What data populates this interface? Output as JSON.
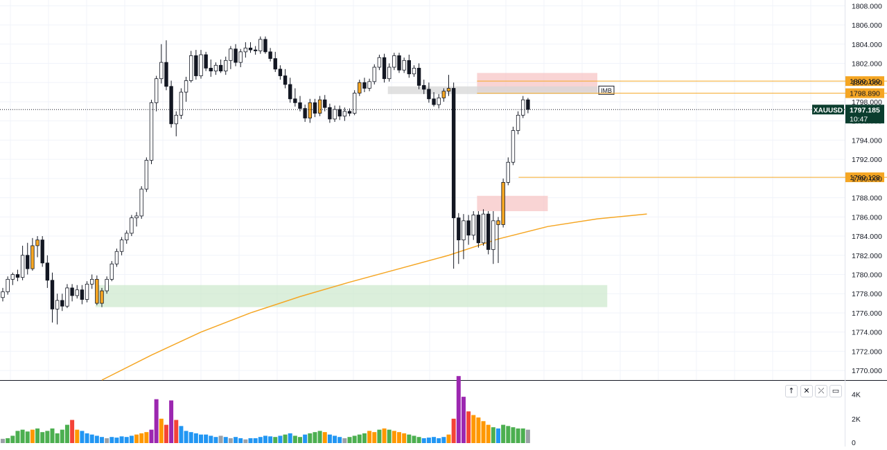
{
  "chart_data": [
    {
      "type": "candlestick",
      "symbol": "XAUUSD",
      "last_price": "1797.185",
      "countdown": "10:47",
      "ylim": [
        1769,
        1808.6
      ],
      "y_ticks": [
        "1770.000",
        "1772.000",
        "1774.000",
        "1776.000",
        "1778.000",
        "1780.000",
        "1782.000",
        "1784.000",
        "1786.000",
        "1788.000",
        "1790.000",
        "1792.000",
        "1794.000",
        "1796.000",
        "1798.000",
        "1800.000",
        "1802.000",
        "1804.000",
        "1806.000",
        "1808.000"
      ],
      "horizontal_levels": [
        {
          "value": 1800.15,
          "label": "1800.150",
          "color": "#f5a623"
        },
        {
          "value": 1798.89,
          "label": "1798.890",
          "color": "#f5a623"
        },
        {
          "value": 1790.128,
          "label": "1790.128",
          "color": "#f5a623"
        }
      ],
      "zones": [
        {
          "type": "supply",
          "from_bar": 96,
          "to_bar": 120,
          "low": 1799.0,
          "high": 1801.0,
          "color": "#f7c6c6"
        },
        {
          "type": "imbalance",
          "from_bar": 78,
          "to_bar": 120,
          "low": 1798.8,
          "high": 1799.6,
          "color": "#d7d7d7",
          "label": "IMB"
        },
        {
          "type": "supply",
          "from_bar": 96,
          "to_bar": 110,
          "low": 1786.6,
          "high": 1788.2,
          "color": "#f7c6c6"
        },
        {
          "type": "demand",
          "from_bar": 19,
          "to_bar": 122,
          "low": 1776.6,
          "high": 1778.9,
          "color": "#cfe9cf"
        }
      ],
      "candles": [
        [
          1777.6,
          1778.6,
          1777.2,
          1778.2
        ],
        [
          1778.2,
          1779.8,
          1777.9,
          1779.5
        ],
        [
          1779.5,
          1780.2,
          1778.9,
          1780.0
        ],
        [
          1780.0,
          1780.5,
          1779.3,
          1779.7
        ],
        [
          1779.7,
          1783.0,
          1779.4,
          1782.0
        ],
        [
          1782.0,
          1783.3,
          1780.0,
          1780.6
        ],
        [
          1780.6,
          1783.8,
          1780.4,
          1783.0
        ],
        [
          1783.0,
          1784.0,
          1781.8,
          1783.6
        ],
        [
          1783.6,
          1784.0,
          1780.8,
          1781.2
        ],
        [
          1781.2,
          1782.0,
          1778.6,
          1779.4
        ],
        [
          1779.4,
          1780.2,
          1775.0,
          1776.4
        ],
        [
          1776.4,
          1778.0,
          1774.8,
          1777.3
        ],
        [
          1777.3,
          1778.0,
          1776.2,
          1776.7
        ],
        [
          1776.7,
          1779.0,
          1776.5,
          1778.6
        ],
        [
          1778.6,
          1779.0,
          1777.2,
          1777.8
        ],
        [
          1777.8,
          1778.9,
          1777.5,
          1778.4
        ],
        [
          1778.4,
          1778.9,
          1776.9,
          1777.4
        ],
        [
          1777.4,
          1779.3,
          1777.1,
          1779.0
        ],
        [
          1779.0,
          1780.0,
          1778.5,
          1779.5
        ],
        [
          1779.5,
          1779.9,
          1776.8,
          1777.0
        ],
        [
          1777.0,
          1778.6,
          1776.6,
          1778.3
        ],
        [
          1778.3,
          1779.8,
          1778.0,
          1779.5
        ],
        [
          1779.5,
          1781.4,
          1779.3,
          1781.1
        ],
        [
          1781.1,
          1782.7,
          1780.8,
          1782.4
        ],
        [
          1782.4,
          1783.9,
          1782.0,
          1783.6
        ],
        [
          1783.6,
          1784.6,
          1783.2,
          1784.3
        ],
        [
          1784.3,
          1786.2,
          1784.0,
          1785.9
        ],
        [
          1785.9,
          1786.5,
          1785.0,
          1786.1
        ],
        [
          1786.1,
          1789.2,
          1785.8,
          1788.9
        ],
        [
          1788.9,
          1792.2,
          1788.6,
          1791.9
        ],
        [
          1791.9,
          1798.2,
          1791.5,
          1797.9
        ],
        [
          1797.9,
          1800.7,
          1797.0,
          1800.4
        ],
        [
          1800.4,
          1804.0,
          1799.9,
          1802.1
        ],
        [
          1802.1,
          1804.4,
          1799.2,
          1799.6
        ],
        [
          1799.6,
          1800.2,
          1795.3,
          1795.7
        ],
        [
          1795.7,
          1797.0,
          1794.4,
          1796.6
        ],
        [
          1796.6,
          1799.4,
          1796.2,
          1799.0
        ],
        [
          1799.0,
          1800.6,
          1798.0,
          1800.2
        ],
        [
          1800.2,
          1803.3,
          1800.0,
          1802.8
        ],
        [
          1802.8,
          1803.4,
          1800.3,
          1800.7
        ],
        [
          1800.7,
          1803.4,
          1800.4,
          1802.9
        ],
        [
          1802.9,
          1803.2,
          1801.2,
          1801.5
        ],
        [
          1801.5,
          1802.4,
          1800.6,
          1801.2
        ],
        [
          1801.2,
          1802.1,
          1800.8,
          1801.8
        ],
        [
          1801.8,
          1802.4,
          1801.0,
          1801.2
        ],
        [
          1801.2,
          1802.7,
          1800.8,
          1802.3
        ],
        [
          1802.3,
          1803.8,
          1801.4,
          1803.5
        ],
        [
          1803.5,
          1804.0,
          1801.7,
          1802.1
        ],
        [
          1802.1,
          1803.5,
          1801.6,
          1803.2
        ],
        [
          1803.2,
          1804.2,
          1802.6,
          1803.6
        ],
        [
          1803.6,
          1804.2,
          1803.1,
          1803.4
        ],
        [
          1803.4,
          1803.8,
          1802.9,
          1803.3
        ],
        [
          1803.3,
          1804.8,
          1803.0,
          1804.5
        ],
        [
          1804.5,
          1804.8,
          1803.0,
          1803.2
        ],
        [
          1803.2,
          1803.6,
          1802.2,
          1802.5
        ],
        [
          1802.5,
          1803.2,
          1801.1,
          1801.4
        ],
        [
          1801.4,
          1801.8,
          1800.3,
          1800.7
        ],
        [
          1800.7,
          1801.4,
          1799.4,
          1799.8
        ],
        [
          1799.8,
          1800.5,
          1797.9,
          1798.3
        ],
        [
          1798.3,
          1799.4,
          1797.5,
          1797.9
        ],
        [
          1797.9,
          1798.6,
          1797.0,
          1797.3
        ],
        [
          1797.3,
          1797.7,
          1795.9,
          1796.3
        ],
        [
          1796.3,
          1798.3,
          1795.8,
          1797.9
        ],
        [
          1797.9,
          1798.3,
          1796.4,
          1796.8
        ],
        [
          1796.8,
          1798.6,
          1796.5,
          1798.2
        ],
        [
          1798.2,
          1798.7,
          1797.0,
          1797.4
        ],
        [
          1797.4,
          1797.8,
          1795.8,
          1796.2
        ],
        [
          1796.2,
          1797.6,
          1795.9,
          1797.2
        ],
        [
          1797.2,
          1797.6,
          1796.1,
          1796.5
        ],
        [
          1796.5,
          1797.4,
          1796.0,
          1797.0
        ],
        [
          1797.0,
          1797.3,
          1796.5,
          1796.8
        ],
        [
          1796.8,
          1799.2,
          1796.6,
          1798.9
        ],
        [
          1798.9,
          1800.3,
          1798.6,
          1800.0
        ],
        [
          1800.0,
          1800.5,
          1799.0,
          1799.4
        ],
        [
          1799.4,
          1800.4,
          1799.1,
          1800.1
        ],
        [
          1800.1,
          1801.9,
          1799.8,
          1801.6
        ],
        [
          1801.6,
          1802.9,
          1801.3,
          1802.6
        ],
        [
          1802.6,
          1803.0,
          1800.0,
          1800.4
        ],
        [
          1800.4,
          1802.0,
          1800.1,
          1801.6
        ],
        [
          1801.6,
          1803.1,
          1801.3,
          1802.8
        ],
        [
          1802.8,
          1803.1,
          1801.0,
          1801.3
        ],
        [
          1801.3,
          1802.6,
          1801.0,
          1802.3
        ],
        [
          1802.3,
          1802.9,
          1800.5,
          1800.9
        ],
        [
          1800.9,
          1801.8,
          1800.6,
          1801.5
        ],
        [
          1801.5,
          1802.0,
          1799.3,
          1799.7
        ],
        [
          1799.7,
          1800.3,
          1798.8,
          1799.3
        ],
        [
          1799.3,
          1800.0,
          1797.9,
          1798.3
        ],
        [
          1798.3,
          1799.0,
          1797.5,
          1797.7
        ],
        [
          1797.7,
          1798.8,
          1797.3,
          1798.4
        ],
        [
          1798.4,
          1799.4,
          1798.0,
          1799.1
        ],
        [
          1799.1,
          1800.8,
          1798.6,
          1799.4
        ],
        [
          1799.4,
          1800.0,
          1780.6,
          1785.9
        ],
        [
          1785.9,
          1786.4,
          1781.1,
          1783.6
        ],
        [
          1783.6,
          1786.3,
          1781.6,
          1785.6
        ],
        [
          1785.6,
          1786.2,
          1783.1,
          1784.1
        ],
        [
          1784.1,
          1786.6,
          1783.6,
          1786.2
        ],
        [
          1786.2,
          1786.6,
          1782.8,
          1783.3
        ],
        [
          1783.3,
          1786.8,
          1783.0,
          1786.3
        ],
        [
          1786.3,
          1786.6,
          1782.1,
          1782.6
        ],
        [
          1782.6,
          1786.6,
          1781.1,
          1785.6
        ],
        [
          1785.6,
          1786.0,
          1781.2,
          1785.2
        ],
        [
          1785.2,
          1790.0,
          1784.9,
          1789.6
        ],
        [
          1789.6,
          1792.2,
          1789.3,
          1791.7
        ],
        [
          1791.7,
          1795.4,
          1791.4,
          1795.0
        ],
        [
          1795.0,
          1797.0,
          1794.6,
          1796.6
        ],
        [
          1796.6,
          1798.6,
          1796.3,
          1798.2
        ],
        [
          1798.2,
          1798.4,
          1796.8,
          1797.2
        ]
      ],
      "ema": {
        "color": "#f5a623",
        "points": [
          [
            20,
            1769
          ],
          [
            30,
            1771.6
          ],
          [
            40,
            1774.0
          ],
          [
            50,
            1776.0
          ],
          [
            60,
            1777.7
          ],
          [
            70,
            1779.2
          ],
          [
            80,
            1780.6
          ],
          [
            90,
            1782.0
          ],
          [
            100,
            1783.7
          ],
          [
            110,
            1785.0
          ],
          [
            120,
            1785.8
          ],
          [
            130,
            1786.3
          ]
        ]
      },
      "volume": {
        "ylim": [
          0,
          5000
        ],
        "y_ticks": [
          "4K",
          "2K",
          "0"
        ],
        "values": [
          350,
          400,
          600,
          1000,
          1100,
          950,
          1100,
          1200,
          900,
          1000,
          1200,
          800,
          1100,
          1500,
          1900,
          1100,
          1000,
          800,
          700,
          600,
          500,
          400,
          500,
          450,
          550,
          500,
          600,
          700,
          800,
          900,
          1100,
          3600,
          2000,
          1500,
          3500,
          1900,
          1400,
          1000,
          900,
          800,
          700,
          700,
          600,
          500,
          600,
          500,
          400,
          500,
          400,
          300,
          400,
          400,
          500,
          600,
          550,
          500,
          600,
          700,
          800,
          600,
          500,
          700,
          800,
          900,
          1000,
          900,
          700,
          600,
          500,
          400,
          500,
          600,
          700,
          800,
          1000,
          900,
          1100,
          1200,
          1100,
          1000,
          900,
          800,
          700,
          600,
          500,
          400,
          450,
          500,
          400,
          500,
          700,
          2000,
          5500,
          3800,
          2600,
          2300,
          2100,
          1800,
          1500,
          1300,
          1200,
          1500,
          1400,
          1300,
          1200,
          1200,
          1100
        ],
        "colors": [
          "#9aa0a6",
          "#4caf50",
          "#4caf50",
          "#4caf50",
          "#4caf50",
          "#4caf50",
          "#ff9800",
          "#4caf50",
          "#4caf50",
          "#4caf50",
          "#4caf50",
          "#4caf50",
          "#4caf50",
          "#4caf50",
          "#f44336",
          "#ff9800",
          "#2196f3",
          "#2196f3",
          "#2196f3",
          "#2196f3",
          "#2196f3",
          "#9aa0a6",
          "#2196f3",
          "#2196f3",
          "#2196f3",
          "#2196f3",
          "#2196f3",
          "#ff9800",
          "#ff9800",
          "#ff9800",
          "#9c27b0",
          "#9c27b0",
          "#ff9800",
          "#f44336",
          "#9c27b0",
          "#f44336",
          "#2196f3",
          "#2196f3",
          "#2196f3",
          "#2196f3",
          "#2196f3",
          "#2196f3",
          "#2196f3",
          "#2196f3",
          "#9aa0a6",
          "#2196f3",
          "#9aa0a6",
          "#2196f3",
          "#2196f3",
          "#9aa0a6",
          "#2196f3",
          "#2196f3",
          "#2196f3",
          "#2196f3",
          "#2196f3",
          "#4caf50",
          "#2196f3",
          "#4caf50",
          "#2196f3",
          "#4caf50",
          "#4caf50",
          "#2196f3",
          "#4caf50",
          "#4caf50",
          "#4caf50",
          "#ff9800",
          "#2196f3",
          "#2196f3",
          "#2196f3",
          "#9aa0a6",
          "#4caf50",
          "#4caf50",
          "#4caf50",
          "#4caf50",
          "#ff9800",
          "#ff9800",
          "#4caf50",
          "#ff9800",
          "#4caf50",
          "#ff9800",
          "#ff9800",
          "#ff9800",
          "#4caf50",
          "#4caf50",
          "#4caf50",
          "#2196f3",
          "#2196f3",
          "#2196f3",
          "#2196f3",
          "#2196f3",
          "#ff9800",
          "#f44336",
          "#9c27b0",
          "#9c27b0",
          "#f44336",
          "#ff9800",
          "#ff9800",
          "#ff9800",
          "#ff9800",
          "#4caf50",
          "#2196f3",
          "#4caf50",
          "#4caf50",
          "#4caf50",
          "#4caf50",
          "#4caf50",
          "#9aa0a6"
        ]
      }
    }
  ],
  "pane_buttons": {
    "up": "↑",
    "close": "✕",
    "collapse": "⤫",
    "maximize": "▭"
  }
}
